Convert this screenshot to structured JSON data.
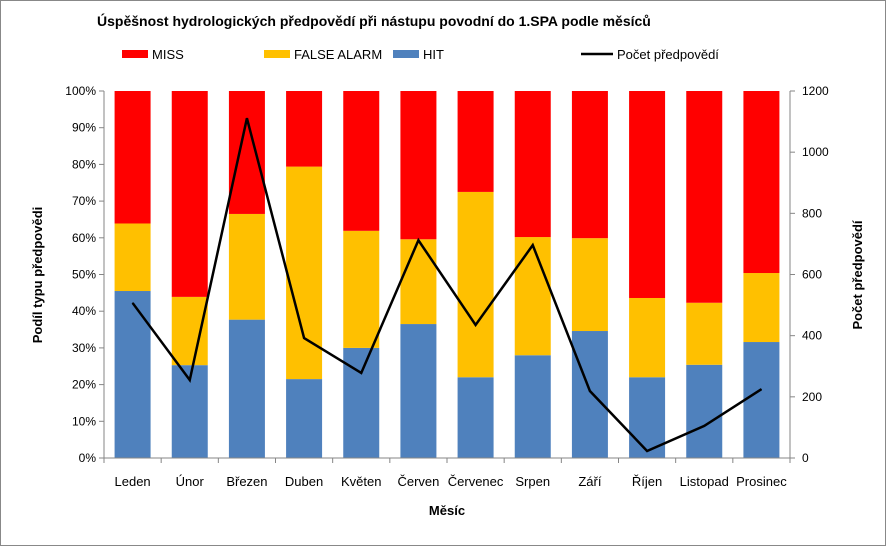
{
  "chart_data": {
    "type": "bar",
    "stacked": true,
    "title": "Úspěšnost hydrologických předpovědí při nástupu povodní  do 1.SPA podle měsíců",
    "xlabel": "Měsíc",
    "ylabel": "Podíl typu předpovědi",
    "y2label": "Počet předpovědí",
    "ylim": [
      0,
      100
    ],
    "y2lim": [
      0,
      1200
    ],
    "yticks": [
      "0%",
      "10%",
      "20%",
      "30%",
      "40%",
      "50%",
      "60%",
      "70%",
      "80%",
      "90%",
      "100%"
    ],
    "y2ticks": [
      "0",
      "200",
      "400",
      "600",
      "800",
      "1000",
      "1200"
    ],
    "categories": [
      "Leden",
      "Únor",
      "Březen",
      "Duben",
      "Květen",
      "Červen",
      "Červenec",
      "Srpen",
      "Září",
      "Říjen",
      "Listopad",
      "Prosinec"
    ],
    "series": [
      {
        "name": "HIT",
        "color": "#4F81BD",
        "values": [
          45.5,
          25.3,
          37.7,
          21.5,
          30.0,
          36.5,
          22.0,
          28.0,
          34.6,
          22.0,
          25.4,
          31.6
        ]
      },
      {
        "name": "FALSE ALARM",
        "color": "#FFC000",
        "values": [
          18.4,
          18.6,
          28.8,
          57.9,
          31.9,
          23.1,
          50.5,
          32.2,
          25.3,
          21.6,
          16.9,
          18.8
        ]
      },
      {
        "name": "MISS",
        "color": "#FF0000",
        "values": [
          36.1,
          56.1,
          33.5,
          20.6,
          38.1,
          40.4,
          27.5,
          39.8,
          40.1,
          56.4,
          57.7,
          49.6
        ]
      }
    ],
    "line": {
      "name": "Počet předpovědí",
      "color": "#000000",
      "axis": "right",
      "values": [
        507,
        255,
        1111,
        392,
        278,
        712,
        435,
        696,
        219,
        23,
        105,
        225
      ]
    },
    "legend_order": [
      "MISS",
      "FALSE ALARM",
      "HIT",
      "Počet předpovědí"
    ],
    "legend_placement": "top",
    "grid": false
  }
}
